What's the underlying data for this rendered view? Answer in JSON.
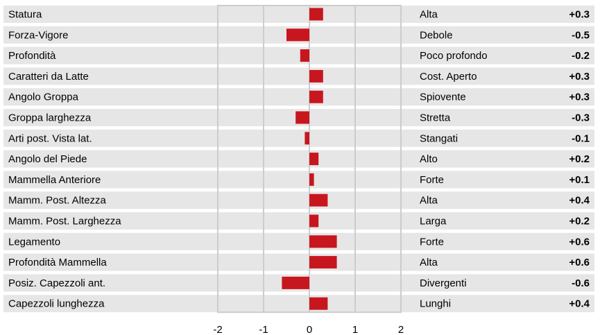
{
  "chart_data": {
    "type": "bar",
    "orientation": "horizontal",
    "title": "",
    "xlabel": "",
    "ylabel": "",
    "xlim": [
      -2,
      2
    ],
    "xticks": [
      -2,
      -1,
      0,
      1,
      2
    ],
    "grid": true,
    "legend": "none",
    "colors": {
      "bar": "#c8161e",
      "band": "#e6e6e6",
      "grid": "#cccccc"
    },
    "categories": [
      "Statura",
      "Forza-Vigore",
      "Profondità",
      "Caratteri da Latte",
      "Angolo Groppa",
      "Groppa larghezza",
      "Arti post. Vista lat.",
      "Angolo del Piede",
      "Mammella Anteriore",
      "Mamm. Post. Altezza",
      "Mamm. Post. Larghezza",
      "Legamento",
      "Profondità Mammella",
      "Posiz. Capezzoli ant.",
      "Capezzoli lunghezza"
    ],
    "descriptors": [
      "Alta",
      "Debole",
      "Poco profondo",
      "Cost. Aperto",
      "Spiovente",
      "Stretta",
      "Stangati",
      "Alto",
      "Forte",
      "Alta",
      "Larga",
      "Forte",
      "Alta",
      "Divergenti",
      "Lunghi"
    ],
    "values": [
      0.3,
      -0.5,
      -0.2,
      0.3,
      0.3,
      -0.3,
      -0.1,
      0.2,
      0.1,
      0.4,
      0.2,
      0.6,
      0.6,
      -0.6,
      0.4
    ],
    "value_labels": [
      "+0.3",
      "-0.5",
      "-0.2",
      "+0.3",
      "+0.3",
      "-0.3",
      "-0.1",
      "+0.2",
      "+0.1",
      "+0.4",
      "+0.2",
      "+0.6",
      "+0.6",
      "-0.6",
      "+0.4"
    ]
  }
}
